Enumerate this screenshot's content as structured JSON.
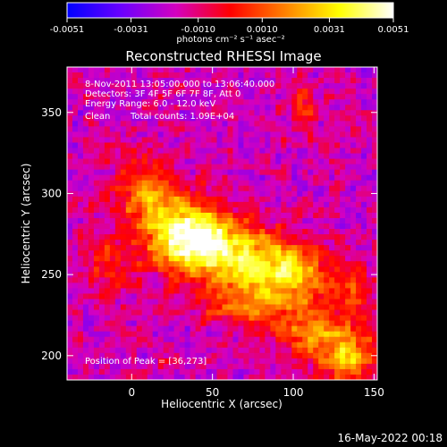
{
  "chart_data": {
    "type": "heatmap",
    "title": "Reconstructed RHESSI Image",
    "xlabel": "Heliocentric X (arcsec)",
    "ylabel": "Heliocentric Y (arcsec)",
    "xlim": [
      -40,
      152
    ],
    "ylim": [
      185,
      378
    ],
    "xticks": [
      0,
      50,
      100,
      150
    ],
    "yticks": [
      200,
      250,
      300,
      350
    ],
    "xtick_labels": [
      "0",
      "50",
      "100",
      "150"
    ],
    "ytick_labels": [
      "200",
      "250",
      "300",
      "350"
    ],
    "grid": false,
    "colorbar": {
      "range": [
        -0.0051,
        0.0051
      ],
      "ticks": [
        -0.0051,
        -0.0031,
        -0.001,
        0.001,
        0.0031,
        0.0051
      ],
      "tick_labels": [
        "-0.0051",
        "-0.0031",
        "-0.0010",
        "0.0010",
        "0.0031",
        "0.0051"
      ],
      "units": "photons cm⁻² s⁻¹ asec⁻²",
      "colormap": [
        "#0000ff",
        "#6b00ff",
        "#d400c0",
        "#ff0000",
        "#ff8000",
        "#ffff00",
        "#ffffff"
      ]
    },
    "annotations": {
      "time_range": "8-Nov-2011 13:05:00.000 to 13:06:40.000",
      "detectors": "Detectors: 3F 4F 5F 6F 7F 8F, Att 0",
      "energy_range": "Energy Range: 6.0 - 12.0 keV",
      "method": "Clean",
      "total_counts": "Total counts: 1.09E+04",
      "peak_position": "Position of Peak = [36,273]"
    },
    "peak": {
      "x": 36,
      "y": 273
    },
    "background_level": -0.0016,
    "sources": [
      {
        "x": 36,
        "y": 273,
        "sx": 18,
        "sy": 14,
        "amp": 0.0068
      },
      {
        "x": 10,
        "y": 300,
        "sx": 14,
        "sy": 14,
        "amp": 0.0034
      },
      {
        "x": 72,
        "y": 260,
        "sx": 22,
        "sy": 14,
        "amp": 0.004
      },
      {
        "x": 100,
        "y": 248,
        "sx": 18,
        "sy": 12,
        "amp": 0.0034
      },
      {
        "x": 70,
        "y": 232,
        "sx": 16,
        "sy": 10,
        "amp": 0.0026
      },
      {
        "x": 110,
        "y": 215,
        "sx": 14,
        "sy": 12,
        "amp": 0.0032
      },
      {
        "x": 135,
        "y": 200,
        "sx": 12,
        "sy": 14,
        "amp": 0.0038
      },
      {
        "x": 140,
        "y": 238,
        "sx": 8,
        "sy": 10,
        "amp": 0.002
      },
      {
        "x": 105,
        "y": 352,
        "sx": 6,
        "sy": 10,
        "amp": 0.002
      },
      {
        "x": -15,
        "y": 255,
        "sx": 12,
        "sy": 12,
        "amp": 0.0018
      }
    ]
  },
  "timestamp": "16-May-2022 00:18"
}
